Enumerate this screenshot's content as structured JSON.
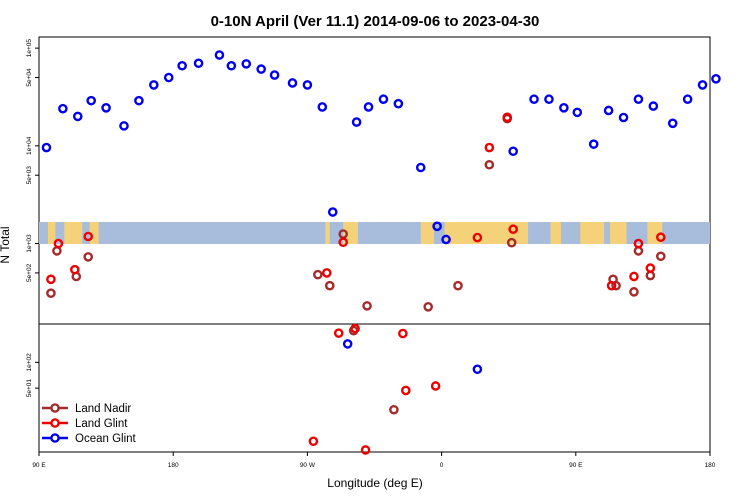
{
  "chart_data": {
    "type": "scatter",
    "title": "0-10N April (Ver 11.1)   2014-09-06 to 2023-04-30",
    "xlabel": "Longitude (deg E)",
    "ylabel": "N Total",
    "x_ticks": [
      {
        "value": 90,
        "label": "90 E"
      },
      {
        "value": 180,
        "label": "180"
      },
      {
        "value": 270,
        "label": "90 W"
      },
      {
        "value": 360,
        "label": "0"
      },
      {
        "value": 450,
        "label": "90 E"
      },
      {
        "value": 540,
        "label": "180"
      }
    ],
    "xlim": [
      90,
      540
    ],
    "y_scale": "log",
    "upper_ticks": [
      {
        "value": 100000,
        "label": "1e+05"
      },
      {
        "value": 50000,
        "label": "5e+04"
      },
      {
        "value": 10000,
        "label": "1e+04"
      },
      {
        "value": 5000,
        "label": "5e+03"
      },
      {
        "value": 1000,
        "label": "1e+03"
      },
      {
        "value": 500,
        "label": "5e+02"
      }
    ],
    "lower_ticks": [
      {
        "value": 100,
        "label": "1e+02"
      },
      {
        "value": 50,
        "label": "5e+01"
      }
    ],
    "upper_ylim": [
      150,
      130000
    ],
    "lower_ylim": [
      9,
      280
    ],
    "colors": {
      "land_nadir": "#a52a2a",
      "land_glint": "#ee0000",
      "ocean_glint": "#0000ee",
      "ocean_band": "#a8bcdc",
      "land_band": "#f5d27a"
    },
    "series": [
      {
        "name": "Ocean Glint",
        "key": "ocean_glint",
        "panel": "upper",
        "points": [
          [
            95,
            9600
          ],
          [
            106,
            24000
          ],
          [
            116,
            20000
          ],
          [
            125,
            29000
          ],
          [
            135,
            24500
          ],
          [
            147,
            16000
          ],
          [
            157,
            29000
          ],
          [
            167,
            42000
          ],
          [
            177,
            50000
          ],
          [
            186,
            66000
          ],
          [
            197,
            70000
          ],
          [
            211,
            85000
          ],
          [
            219,
            66000
          ],
          [
            229,
            69000
          ],
          [
            239,
            61000
          ],
          [
            248,
            53000
          ],
          [
            260,
            44000
          ],
          [
            270,
            42000
          ],
          [
            280,
            25000
          ],
          [
            287,
            2100
          ],
          [
            303,
            17500
          ],
          [
            311,
            25000
          ],
          [
            321,
            30000
          ],
          [
            331,
            27000
          ],
          [
            346,
            6000
          ],
          [
            357,
            1500
          ],
          [
            363,
            1100
          ],
          [
            408,
            8800
          ],
          [
            422,
            30000
          ],
          [
            432,
            30000
          ],
          [
            442,
            24500
          ],
          [
            451,
            22000
          ],
          [
            462,
            10400
          ],
          [
            472,
            23000
          ],
          [
            482,
            19500
          ],
          [
            492,
            30000
          ],
          [
            502,
            25500
          ],
          [
            515,
            17000
          ],
          [
            525,
            30000
          ],
          [
            535,
            42000
          ],
          [
            544,
            48500
          ]
        ]
      },
      {
        "name": "Land Nadir",
        "key": "land_nadir",
        "panel": "upper",
        "points": [
          [
            98,
            310
          ],
          [
            102,
            840
          ],
          [
            115,
            460
          ],
          [
            123,
            730
          ],
          [
            277,
            480
          ],
          [
            285,
            370
          ],
          [
            294,
            1250
          ],
          [
            310,
            230
          ],
          [
            351,
            225
          ],
          [
            371,
            370
          ],
          [
            392,
            6400
          ],
          [
            404,
            19000
          ],
          [
            407,
            1020
          ],
          [
            475,
            430
          ],
          [
            477,
            370
          ],
          [
            489,
            320
          ],
          [
            492,
            840
          ],
          [
            500,
            470
          ],
          [
            507,
            740
          ]
        ]
      },
      {
        "name": "Land Glint",
        "key": "land_glint",
        "panel": "upper",
        "points": [
          [
            98,
            430
          ],
          [
            103,
            1000
          ],
          [
            114,
            540
          ],
          [
            123,
            1180
          ],
          [
            283,
            500
          ],
          [
            294,
            1030
          ],
          [
            384,
            1150
          ],
          [
            392,
            9600
          ],
          [
            404,
            19600
          ],
          [
            408,
            1400
          ],
          [
            474,
            370
          ],
          [
            489,
            460
          ],
          [
            492,
            1000
          ],
          [
            500,
            560
          ],
          [
            507,
            1160
          ]
        ]
      },
      {
        "name": "Ocean Glint",
        "key": "ocean_glint",
        "panel": "lower",
        "points": [
          [
            297,
            164
          ],
          [
            384,
            83
          ]
        ]
      },
      {
        "name": "Land Nadir",
        "key": "land_nadir",
        "panel": "lower",
        "points": [
          [
            301,
            234
          ],
          [
            328,
            28
          ]
        ]
      },
      {
        "name": "Land Glint",
        "key": "land_glint",
        "panel": "lower",
        "points": [
          [
            274,
            12
          ],
          [
            302,
            248
          ],
          [
            291,
            219
          ],
          [
            334,
            217
          ],
          [
            309,
            9.5
          ],
          [
            336,
            47
          ],
          [
            356,
            53
          ]
        ]
      }
    ],
    "legend": {
      "placement": "bottom-left",
      "entries": [
        {
          "label": "Land Nadir",
          "key": "land_nadir"
        },
        {
          "label": "Land Glint",
          "key": "land_glint"
        },
        {
          "label": "Ocean Glint",
          "key": "ocean_glint"
        }
      ]
    },
    "map_band": {
      "land_segments": [
        [
          96,
          101
        ],
        [
          107,
          119
        ],
        [
          124,
          130
        ],
        [
          282,
          285
        ],
        [
          294,
          304
        ],
        [
          346,
          355
        ],
        [
          362,
          418
        ],
        [
          433,
          440
        ],
        [
          453,
          469
        ],
        [
          473,
          484
        ],
        [
          498,
          508
        ]
      ]
    }
  }
}
